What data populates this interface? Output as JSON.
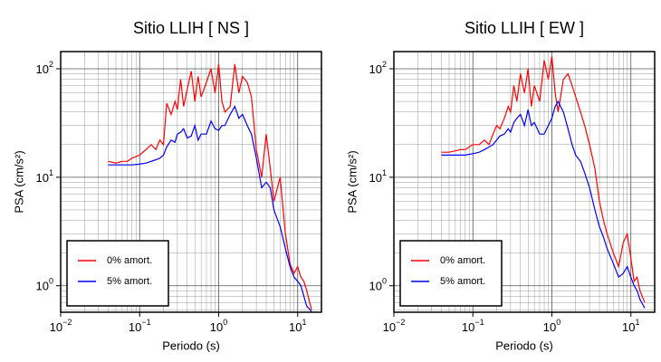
{
  "chart_data": [
    {
      "type": "line",
      "title": "Sitio LLIH [ NS ]",
      "x_label": "Periodo (s)",
      "y_label": "PSA (cm/s²)",
      "x_scale": "log",
      "y_scale": "log",
      "grid": true,
      "legend": "lower left",
      "xlim": [
        0.01,
        20
      ],
      "ylim": [
        0.57,
        144
      ],
      "xticks": [
        {
          "value": 0.01,
          "label": {
            "base": "10",
            "exponent": "−2"
          }
        },
        {
          "value": 0.1,
          "label": {
            "base": "10",
            "exponent": "−1"
          }
        },
        {
          "value": 1,
          "label": {
            "base": "10",
            "exponent": "0"
          }
        },
        {
          "value": 10,
          "label": {
            "base": "10",
            "exponent": "1"
          }
        }
      ],
      "yticks": [
        {
          "value": 1,
          "label": {
            "base": "10",
            "exponent": "0"
          }
        },
        {
          "value": 10,
          "label": {
            "base": "10",
            "exponent": "1"
          }
        },
        {
          "value": 100,
          "label": {
            "base": "10",
            "exponent": "2"
          }
        }
      ],
      "x": [
        0.04,
        0.05,
        0.06,
        0.07,
        0.08,
        0.1,
        0.12,
        0.14,
        0.16,
        0.18,
        0.2,
        0.22,
        0.25,
        0.28,
        0.3,
        0.33,
        0.36,
        0.4,
        0.45,
        0.5,
        0.55,
        0.6,
        0.7,
        0.8,
        0.9,
        1.0,
        1.1,
        1.2,
        1.4,
        1.6,
        1.8,
        2.0,
        2.3,
        2.6,
        3.0,
        3.5,
        4.0,
        4.5,
        5.0,
        6.0,
        7.0,
        8.0,
        9.0,
        10,
        11,
        12,
        13,
        15
      ],
      "series": [
        {
          "name": "0% amort.",
          "color": "#ff0000",
          "values": [
            14,
            13.5,
            14,
            14,
            15,
            16,
            18,
            20,
            18,
            22,
            20,
            48,
            38,
            50,
            42,
            80,
            45,
            65,
            95,
            50,
            85,
            55,
            75,
            100,
            60,
            110,
            50,
            40,
            45,
            110,
            60,
            85,
            75,
            55,
            18,
            10,
            25,
            12,
            6,
            10,
            3,
            1.6,
            1.3,
            1.5,
            1.2,
            1.1,
            0.9,
            0.6
          ]
        },
        {
          "name": "5% amort.",
          "color": "#0000ff",
          "values": [
            13,
            13,
            13,
            13,
            13,
            13.2,
            13.5,
            14,
            14.5,
            15,
            16,
            19,
            22,
            21,
            25,
            26,
            28,
            23,
            24,
            30,
            22,
            25,
            25,
            33,
            28,
            27,
            30,
            30,
            38,
            45,
            35,
            38,
            30,
            25,
            15,
            8,
            9,
            8,
            5,
            3.5,
            2.2,
            1.5,
            1.2,
            1.1,
            1.0,
            0.8,
            0.65,
            0.58
          ]
        }
      ]
    },
    {
      "type": "line",
      "title": "Sitio LLIH [ EW ]",
      "x_label": "Periodo (s)",
      "y_label": "PSA (cm/s²)",
      "x_scale": "log",
      "y_scale": "log",
      "grid": true,
      "legend": "lower left",
      "xlim": [
        0.01,
        20
      ],
      "ylim": [
        0.57,
        144
      ],
      "xticks": [
        {
          "value": 0.01,
          "label": {
            "base": "10",
            "exponent": "−2"
          }
        },
        {
          "value": 0.1,
          "label": {
            "base": "10",
            "exponent": "−1"
          }
        },
        {
          "value": 1,
          "label": {
            "base": "10",
            "exponent": "0"
          }
        },
        {
          "value": 10,
          "label": {
            "base": "10",
            "exponent": "1"
          }
        }
      ],
      "yticks": [
        {
          "value": 1,
          "label": {
            "base": "10",
            "exponent": "0"
          }
        },
        {
          "value": 10,
          "label": {
            "base": "10",
            "exponent": "1"
          }
        },
        {
          "value": 100,
          "label": {
            "base": "10",
            "exponent": "2"
          }
        }
      ],
      "x": [
        0.04,
        0.05,
        0.06,
        0.07,
        0.08,
        0.1,
        0.12,
        0.14,
        0.16,
        0.18,
        0.2,
        0.22,
        0.25,
        0.28,
        0.3,
        0.33,
        0.36,
        0.4,
        0.45,
        0.5,
        0.55,
        0.6,
        0.7,
        0.8,
        0.9,
        1.0,
        1.1,
        1.2,
        1.4,
        1.6,
        1.8,
        2.0,
        2.3,
        2.6,
        3.0,
        3.5,
        4.0,
        4.5,
        5.0,
        6.0,
        7.0,
        8.0,
        9.0,
        10,
        11,
        12,
        13,
        15
      ],
      "series": [
        {
          "name": "0% amort.",
          "color": "#ff0000",
          "values": [
            17,
            17,
            17.5,
            18,
            18,
            20,
            20,
            22,
            20,
            25,
            30,
            28,
            35,
            45,
            40,
            70,
            50,
            90,
            60,
            100,
            45,
            70,
            50,
            120,
            80,
            130,
            60,
            40,
            80,
            90,
            70,
            55,
            40,
            30,
            20,
            12,
            6,
            4,
            3,
            2,
            1.5,
            2.5,
            3,
            1.8,
            1.1,
            1.2,
            0.9,
            0.7
          ]
        },
        {
          "name": "5% amort.",
          "color": "#0000ff",
          "values": [
            16,
            16,
            16,
            16,
            16,
            16.5,
            17,
            18,
            19,
            20,
            22,
            24,
            25,
            28,
            26,
            32,
            35,
            38,
            30,
            42,
            30,
            32,
            25,
            25,
            30,
            35,
            45,
            50,
            40,
            28,
            20,
            16,
            14,
            11,
            8,
            5,
            3.5,
            2.8,
            2.2,
            1.6,
            1.2,
            1.3,
            1.5,
            1.2,
            1.0,
            0.9,
            0.75,
            0.62
          ]
        }
      ]
    }
  ]
}
